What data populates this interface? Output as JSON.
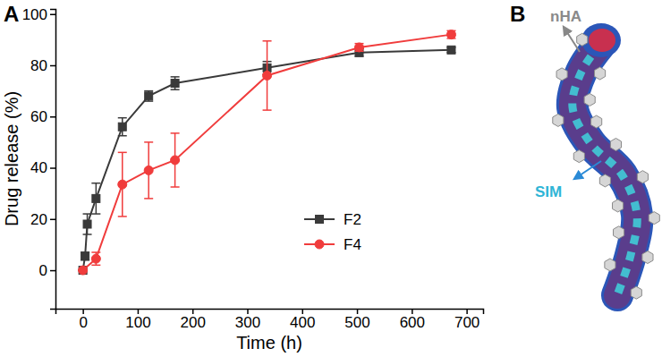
{
  "chart_data": {
    "type": "line",
    "panel_label": "A",
    "x_label": "Time (h)",
    "y_label": "Drug release (%)",
    "xlim": [
      -50,
      730
    ],
    "xticks": [
      0,
      100,
      200,
      300,
      400,
      500,
      600,
      700
    ],
    "ylim": [
      -15,
      102
    ],
    "yticks": [
      0,
      20,
      40,
      60,
      80,
      100
    ],
    "legend": "lower right",
    "series": [
      {
        "name": "F2",
        "color": "#3a3a3a",
        "marker": "square",
        "line_style": "solid",
        "x": [
          0,
          4,
          8,
          24,
          72,
          120,
          168,
          336,
          504,
          672
        ],
        "values": [
          0,
          5.5,
          18,
          28,
          56,
          68,
          73,
          79,
          85,
          86
        ],
        "errors": [
          0,
          1.5,
          4,
          6,
          3.5,
          2,
          2.5,
          2.5,
          1.5,
          1
        ]
      },
      {
        "name": "F4",
        "color": "#f03c3c",
        "marker": "circle",
        "line_style": "solid",
        "x": [
          0,
          24,
          72,
          120,
          168,
          336,
          504,
          672
        ],
        "values": [
          0,
          4.5,
          33.5,
          39,
          43,
          76,
          87,
          92
        ],
        "errors": [
          0,
          2.5,
          12.5,
          11,
          10.5,
          13.5,
          1.5,
          1.5
        ]
      }
    ]
  },
  "diagram": {
    "panel_label": "B",
    "nha_label": "nHA",
    "sim_label": "SIM"
  }
}
